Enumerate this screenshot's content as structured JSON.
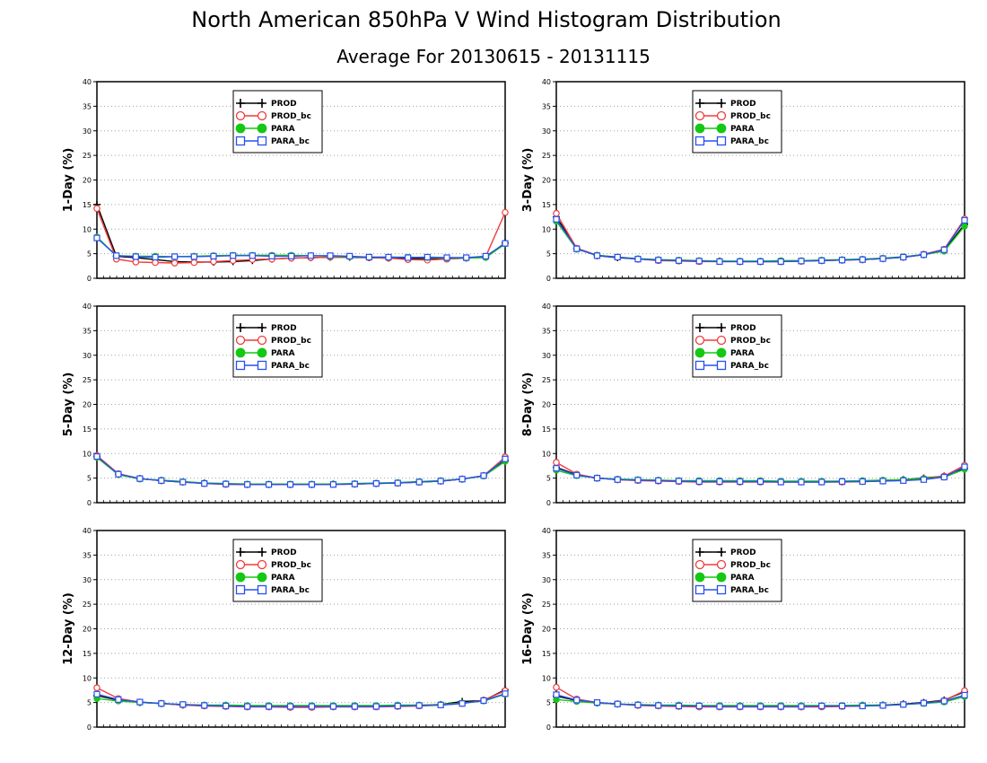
{
  "title": "North American 850hPa V Wind Histogram Distribution",
  "subtitle": "Average For 20130615 - 20131115",
  "colors": {
    "PROD": "#000000",
    "PROD_bc": "#f03c3c",
    "PARA": "#14c814",
    "PARA_bc": "#2850f0"
  },
  "legend": [
    "PROD",
    "PROD_bc",
    "PARA",
    "PARA_bc"
  ],
  "chart_data": [
    {
      "type": "line",
      "ylabel": "1-Day (%)",
      "ylim": [
        0,
        40
      ],
      "yticks": [
        0,
        5,
        10,
        15,
        20,
        25,
        30,
        35,
        40
      ],
      "grid": true,
      "legend_position": "top-center",
      "series": [
        {
          "name": "PROD",
          "values": [
            15.0,
            4.5,
            4.2,
            3.8,
            3.4,
            3.3,
            3.3,
            3.4,
            3.6,
            3.9,
            4.1,
            4.2,
            4.3,
            4.3,
            4.2,
            4.1,
            4.0,
            4.0,
            4.0,
            4.1,
            4.3,
            7.2
          ]
        },
        {
          "name": "PROD_bc",
          "values": [
            14.2,
            3.9,
            3.3,
            3.2,
            3.1,
            3.2,
            3.4,
            3.6,
            3.8,
            3.9,
            4.1,
            4.2,
            4.3,
            4.4,
            4.2,
            4.1,
            3.8,
            3.7,
            3.9,
            4.1,
            4.4,
            13.4
          ]
        },
        {
          "name": "PARA",
          "values": [
            8.4,
            4.6,
            4.5,
            4.5,
            4.4,
            4.5,
            4.6,
            4.7,
            4.7,
            4.7,
            4.7,
            4.6,
            4.5,
            4.4,
            4.3,
            4.3,
            4.3,
            4.2,
            4.1,
            4.1,
            4.2,
            7.0
          ]
        },
        {
          "name": "PARA_bc",
          "values": [
            8.2,
            4.6,
            4.4,
            4.3,
            4.4,
            4.4,
            4.5,
            4.6,
            4.6,
            4.5,
            4.5,
            4.6,
            4.6,
            4.5,
            4.3,
            4.3,
            4.2,
            4.3,
            4.2,
            4.2,
            4.5,
            7.1
          ]
        }
      ]
    },
    {
      "type": "line",
      "ylabel": "3-Day (%)",
      "ylim": [
        0,
        40
      ],
      "yticks": [
        0,
        5,
        10,
        15,
        20,
        25,
        30,
        35,
        40
      ],
      "grid": true,
      "legend_position": "top-center",
      "series": [
        {
          "name": "PROD",
          "values": [
            12.5,
            6.0,
            4.6,
            4.2,
            3.9,
            3.7,
            3.6,
            3.5,
            3.5,
            3.4,
            3.4,
            3.4,
            3.5,
            3.6,
            3.7,
            3.8,
            4.0,
            4.3,
            4.8,
            5.6,
            11.0
          ]
        },
        {
          "name": "PROD_bc",
          "values": [
            13.2,
            6.1,
            4.7,
            4.3,
            3.9,
            3.6,
            3.5,
            3.4,
            3.4,
            3.4,
            3.4,
            3.4,
            3.5,
            3.6,
            3.7,
            3.8,
            4.0,
            4.3,
            4.9,
            5.9,
            12.1
          ]
        },
        {
          "name": "PARA",
          "values": [
            11.6,
            5.9,
            4.7,
            4.3,
            4.0,
            3.8,
            3.7,
            3.6,
            3.5,
            3.5,
            3.5,
            3.6,
            3.6,
            3.7,
            3.8,
            3.9,
            4.1,
            4.4,
            4.8,
            5.5,
            10.6
          ]
        },
        {
          "name": "PARA_bc",
          "values": [
            12.0,
            6.0,
            4.6,
            4.3,
            3.9,
            3.7,
            3.6,
            3.5,
            3.4,
            3.4,
            3.4,
            3.4,
            3.5,
            3.6,
            3.7,
            3.8,
            4.0,
            4.3,
            4.8,
            5.8,
            11.8
          ]
        }
      ]
    },
    {
      "type": "line",
      "ylabel": "5-Day (%)",
      "ylim": [
        0,
        40
      ],
      "yticks": [
        0,
        5,
        10,
        15,
        20,
        25,
        30,
        35,
        40
      ],
      "grid": true,
      "legend_position": "top-center",
      "series": [
        {
          "name": "PROD",
          "values": [
            9.4,
            5.8,
            4.9,
            4.5,
            4.2,
            4.0,
            3.8,
            3.7,
            3.7,
            3.7,
            3.7,
            3.8,
            3.8,
            3.9,
            4.0,
            4.2,
            4.4,
            4.8,
            5.5,
            8.6
          ]
        },
        {
          "name": "PROD_bc",
          "values": [
            9.6,
            5.9,
            4.9,
            4.5,
            4.2,
            3.9,
            3.7,
            3.7,
            3.7,
            3.7,
            3.7,
            3.7,
            3.8,
            3.9,
            4.0,
            4.2,
            4.4,
            4.8,
            5.5,
            9.3
          ]
        },
        {
          "name": "PARA",
          "values": [
            9.2,
            5.7,
            4.8,
            4.6,
            4.3,
            4.0,
            3.9,
            3.8,
            3.8,
            3.8,
            3.8,
            3.8,
            3.9,
            4.0,
            4.1,
            4.3,
            4.5,
            4.8,
            5.4,
            8.4
          ]
        },
        {
          "name": "PARA_bc",
          "values": [
            9.4,
            5.8,
            4.9,
            4.5,
            4.2,
            3.9,
            3.8,
            3.7,
            3.7,
            3.7,
            3.7,
            3.7,
            3.8,
            3.9,
            4.0,
            4.2,
            4.4,
            4.8,
            5.5,
            8.9
          ]
        }
      ]
    },
    {
      "type": "line",
      "ylabel": "8-Day (%)",
      "ylim": [
        0,
        40
      ],
      "yticks": [
        0,
        5,
        10,
        15,
        20,
        25,
        30,
        35,
        40
      ],
      "grid": true,
      "legend_position": "top-center",
      "series": [
        {
          "name": "PROD",
          "values": [
            7.2,
            5.7,
            5.0,
            4.7,
            4.6,
            4.5,
            4.4,
            4.3,
            4.3,
            4.3,
            4.3,
            4.3,
            4.3,
            4.3,
            4.3,
            4.4,
            4.5,
            4.7,
            5.0,
            5.4,
            7.0
          ]
        },
        {
          "name": "PROD_bc",
          "values": [
            8.2,
            5.8,
            5.0,
            4.7,
            4.5,
            4.4,
            4.3,
            4.2,
            4.2,
            4.2,
            4.2,
            4.2,
            4.2,
            4.2,
            4.2,
            4.3,
            4.4,
            4.6,
            4.9,
            5.4,
            7.6
          ]
        },
        {
          "name": "PARA",
          "values": [
            6.6,
            5.5,
            5.0,
            4.8,
            4.7,
            4.6,
            4.5,
            4.5,
            4.5,
            4.5,
            4.5,
            4.4,
            4.4,
            4.4,
            4.4,
            4.5,
            4.6,
            4.7,
            4.9,
            5.2,
            6.8
          ]
        },
        {
          "name": "PARA_bc",
          "values": [
            7.0,
            5.6,
            5.0,
            4.7,
            4.6,
            4.5,
            4.4,
            4.3,
            4.3,
            4.3,
            4.3,
            4.2,
            4.2,
            4.2,
            4.3,
            4.3,
            4.4,
            4.5,
            4.7,
            5.2,
            7.3
          ]
        }
      ]
    },
    {
      "type": "line",
      "ylabel": "12-Day (%)",
      "ylim": [
        0,
        40
      ],
      "yticks": [
        0,
        5,
        10,
        15,
        20,
        25,
        30,
        35,
        40
      ],
      "grid": true,
      "legend_position": "top-center",
      "series": [
        {
          "name": "PROD",
          "values": [
            6.4,
            5.5,
            5.0,
            4.8,
            4.5,
            4.4,
            4.3,
            4.2,
            4.2,
            4.2,
            4.2,
            4.2,
            4.2,
            4.3,
            4.3,
            4.4,
            4.6,
            5.2,
            5.4,
            7.6
          ]
        },
        {
          "name": "PROD_bc",
          "values": [
            8.0,
            5.8,
            5.1,
            4.8,
            4.5,
            4.3,
            4.2,
            4.1,
            4.1,
            4.0,
            4.0,
            4.1,
            4.1,
            4.1,
            4.2,
            4.3,
            4.5,
            4.8,
            5.5,
            7.4
          ]
        },
        {
          "name": "PARA",
          "values": [
            5.8,
            5.3,
            5.0,
            4.8,
            4.6,
            4.5,
            4.5,
            4.4,
            4.4,
            4.4,
            4.4,
            4.4,
            4.4,
            4.4,
            4.5,
            4.5,
            4.6,
            4.9,
            5.3,
            6.7
          ]
        },
        {
          "name": "PARA_bc",
          "values": [
            6.7,
            5.6,
            5.1,
            4.8,
            4.6,
            4.4,
            4.3,
            4.2,
            4.2,
            4.2,
            4.2,
            4.2,
            4.2,
            4.2,
            4.3,
            4.4,
            4.5,
            4.8,
            5.4,
            6.8
          ]
        }
      ]
    },
    {
      "type": "line",
      "ylabel": "16-Day (%)",
      "ylim": [
        0,
        40
      ],
      "yticks": [
        0,
        5,
        10,
        15,
        20,
        25,
        30,
        35,
        40
      ],
      "grid": true,
      "legend_position": "top-center",
      "series": [
        {
          "name": "PROD",
          "values": [
            6.3,
            5.4,
            4.9,
            4.7,
            4.5,
            4.4,
            4.3,
            4.3,
            4.3,
            4.3,
            4.3,
            4.3,
            4.3,
            4.3,
            4.3,
            4.4,
            4.5,
            4.7,
            5.0,
            5.5,
            7.2
          ]
        },
        {
          "name": "PROD_bc",
          "values": [
            8.1,
            5.7,
            5.0,
            4.7,
            4.4,
            4.3,
            4.2,
            4.1,
            4.1,
            4.1,
            4.1,
            4.1,
            4.1,
            4.1,
            4.2,
            4.3,
            4.4,
            4.6,
            4.9,
            5.4,
            7.4
          ]
        },
        {
          "name": "PARA",
          "values": [
            5.6,
            5.2,
            4.9,
            4.7,
            4.6,
            4.5,
            4.5,
            4.4,
            4.4,
            4.4,
            4.4,
            4.4,
            4.4,
            4.4,
            4.4,
            4.5,
            4.5,
            4.6,
            4.8,
            5.1,
            6.2
          ]
        },
        {
          "name": "PARA_bc",
          "values": [
            6.6,
            5.5,
            5.0,
            4.7,
            4.5,
            4.4,
            4.3,
            4.3,
            4.2,
            4.2,
            4.2,
            4.2,
            4.2,
            4.3,
            4.3,
            4.3,
            4.4,
            4.6,
            4.9,
            5.3,
            6.5
          ]
        }
      ]
    }
  ]
}
